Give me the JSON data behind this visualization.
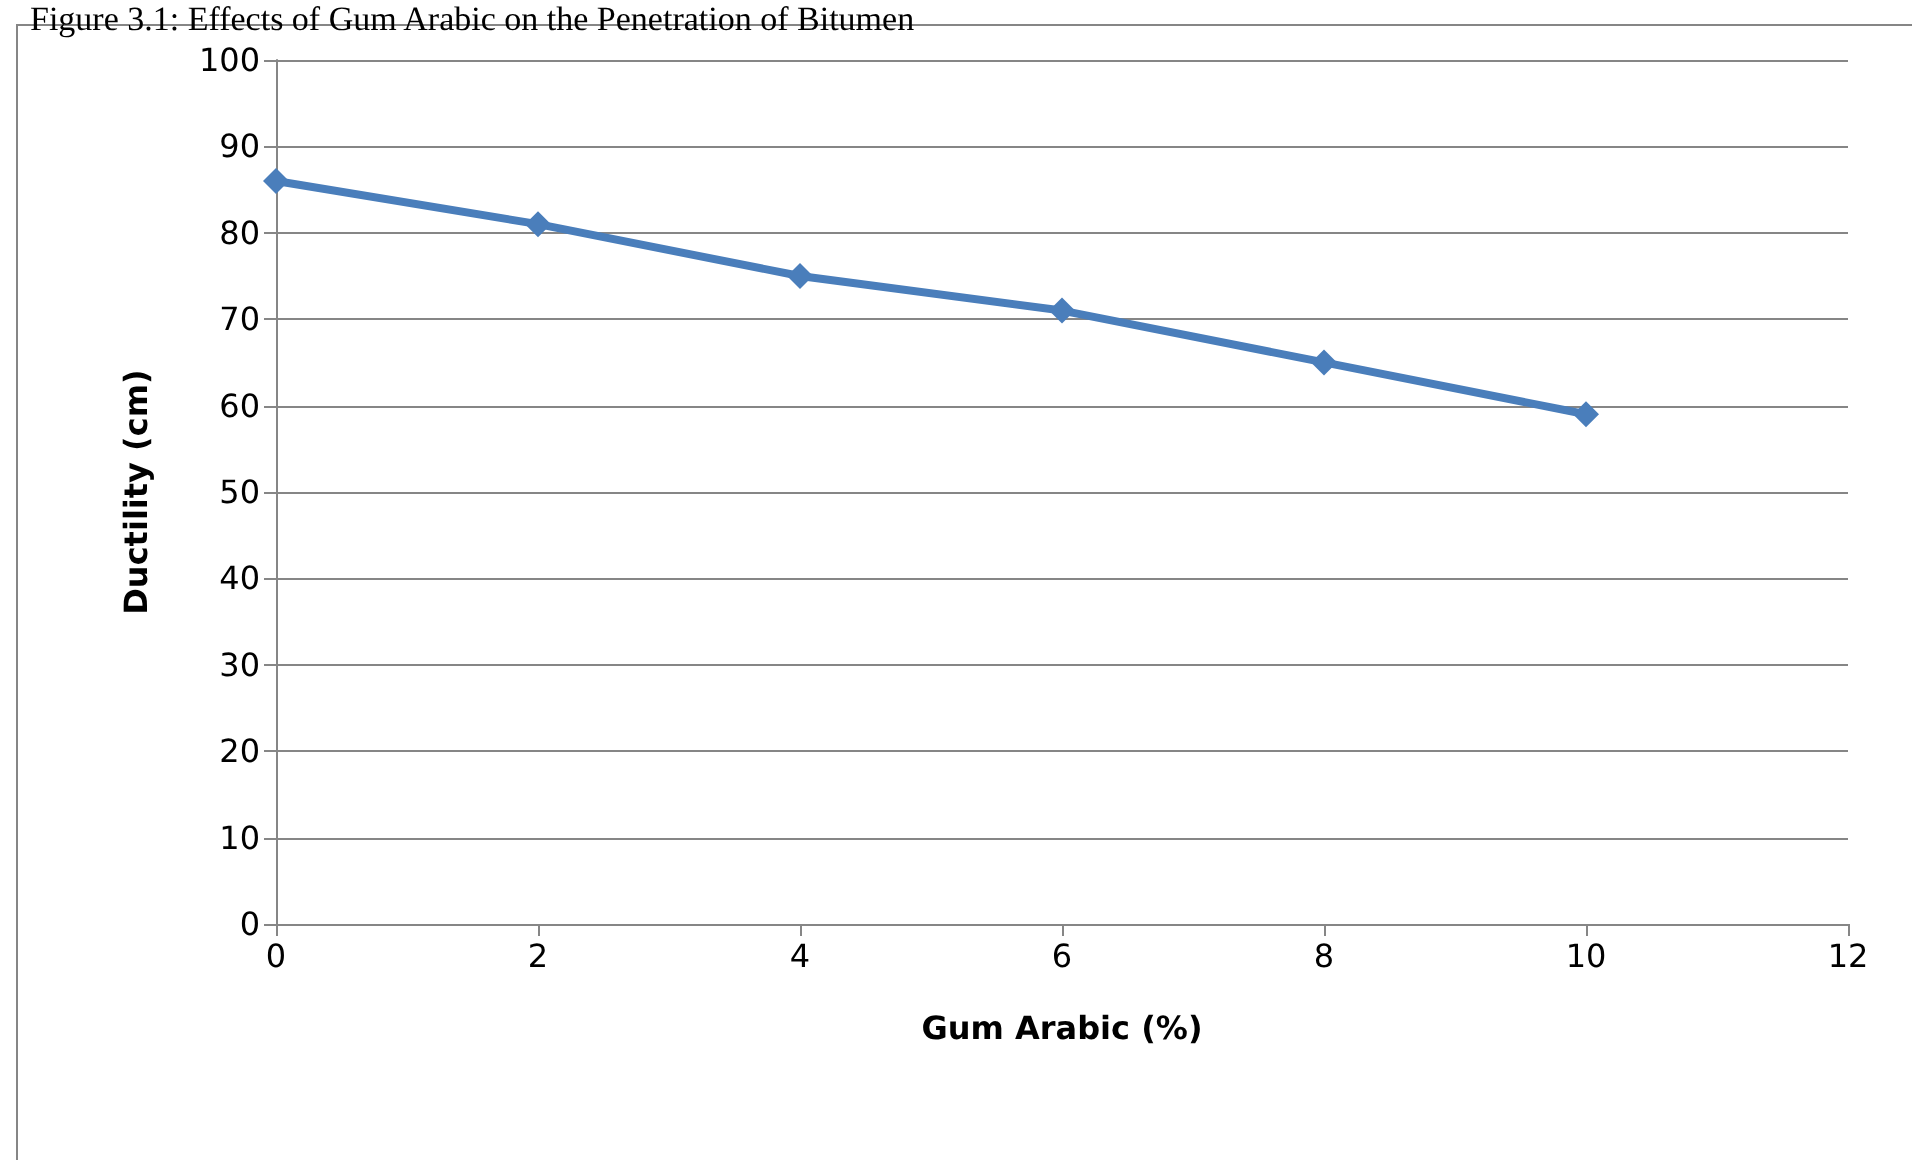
{
  "chart_data": {
    "type": "line",
    "title": "Figure 3.1: Effects of Gum Arabic on the Penetration of Bitumen",
    "xlabel": "Gum Arabic (%)",
    "ylabel": "Ductility (cm)",
    "x": [
      0,
      2,
      4,
      6,
      8,
      10
    ],
    "series": [
      {
        "color": "#4a7ebb",
        "values": [
          86,
          81,
          75,
          71,
          65,
          59
        ]
      }
    ],
    "xlim": [
      0,
      12
    ],
    "xticks": [
      0,
      2,
      4,
      6,
      8,
      10,
      12
    ],
    "ylim": [
      0,
      100
    ],
    "yticks": [
      0,
      10,
      20,
      30,
      40,
      50,
      60,
      70,
      80,
      90,
      100
    ],
    "grid": "y",
    "marker": "diamond",
    "line_style": "solid"
  }
}
